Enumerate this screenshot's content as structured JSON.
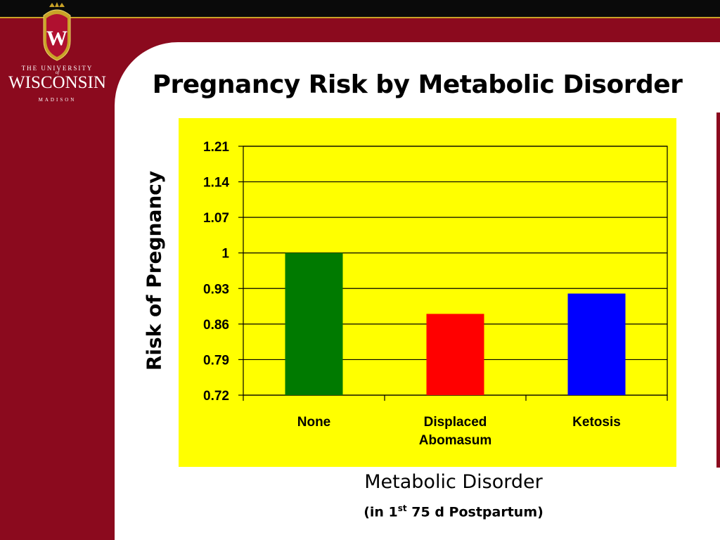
{
  "logo": {
    "line1": "THE UNIVERSITY",
    "line_of": "of",
    "line2": "WISCONSIN",
    "line3": "MADISON",
    "crest_letter": "W"
  },
  "colors": {
    "brand_red": "#8b0a1e",
    "plot_background": "#ffff00",
    "gridline": "#000000"
  },
  "chart_data": {
    "type": "bar",
    "title": "Pregnancy Risk by Metabolic Disorder",
    "ylabel": "Risk of Pregnancy",
    "xlabel": "Metabolic Disorder",
    "xlabel_sub_pre": "(in 1",
    "xlabel_sub_sup": "st",
    "xlabel_sub_post": " 75 d Postpartum)",
    "categories": [
      [
        "None"
      ],
      [
        "Displaced",
        "Abomasum"
      ],
      [
        "Ketosis"
      ]
    ],
    "values": [
      1.0,
      0.88,
      0.92
    ],
    "bar_colors": [
      "#007a00",
      "#ff0000",
      "#0000ff"
    ],
    "ylim": [
      0.72,
      1.21
    ],
    "yticks": [
      "1.21",
      "1.14",
      "1.07",
      "1",
      "0.93",
      "0.86",
      "0.79",
      "0.72"
    ],
    "ytick_values": [
      1.21,
      1.14,
      1.07,
      1.0,
      0.93,
      0.86,
      0.79,
      0.72
    ],
    "grid": true,
    "legend": "none"
  }
}
